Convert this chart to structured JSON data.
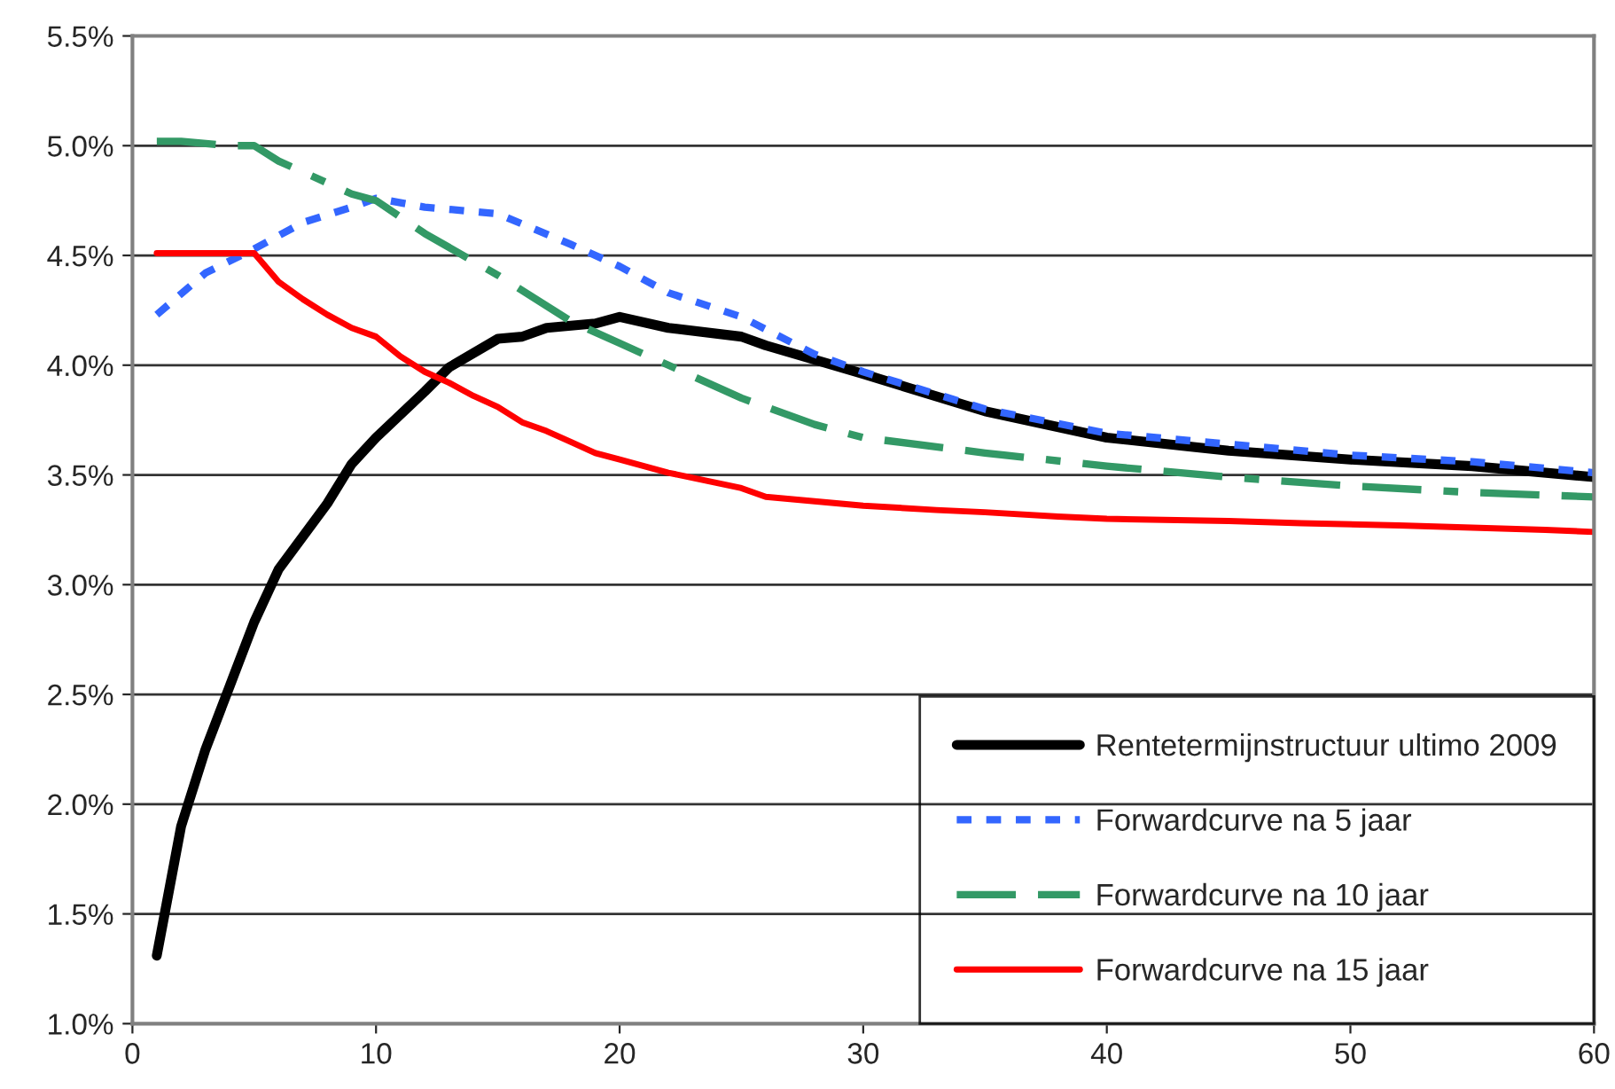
{
  "chart_data": {
    "type": "line",
    "xlim": [
      0,
      60
    ],
    "xticks": [
      0,
      10,
      20,
      30,
      40,
      50,
      60
    ],
    "ylim": [
      1.0,
      5.5
    ],
    "yticks": [
      {
        "value": 1.0,
        "label": "1.0%"
      },
      {
        "value": 1.5,
        "label": "1.5%"
      },
      {
        "value": 2.0,
        "label": "2.0%"
      },
      {
        "value": 2.5,
        "label": "2.5%"
      },
      {
        "value": 3.0,
        "label": "3.0%"
      },
      {
        "value": 3.5,
        "label": "3.5%"
      },
      {
        "value": 4.0,
        "label": "4.0%"
      },
      {
        "value": 4.5,
        "label": "4.5%"
      },
      {
        "value": 5.0,
        "label": "5.0%"
      },
      {
        "value": 5.5,
        "label": "5.5%"
      }
    ],
    "grid": "y",
    "legend": "bottom right",
    "marker": "none",
    "series": [
      {
        "name": "Rentetermijnstructuur ultimo 2009",
        "color": "#000000",
        "line_style": "solid",
        "x": [
          1,
          2,
          3,
          4,
          5,
          6,
          8,
          9,
          10,
          12,
          13,
          15,
          16,
          17,
          19,
          20,
          22,
          25,
          26,
          30,
          35,
          40,
          45,
          50,
          55,
          60
        ],
        "values": [
          1.31,
          1.9,
          2.25,
          2.54,
          2.83,
          3.07,
          3.37,
          3.55,
          3.67,
          3.88,
          3.99,
          4.12,
          4.13,
          4.17,
          4.19,
          4.22,
          4.17,
          4.13,
          4.09,
          3.96,
          3.79,
          3.67,
          3.61,
          3.57,
          3.54,
          3.49
        ]
      },
      {
        "name": "Forwardcurve na 5 jaar",
        "color": "#3366ff",
        "line_style": "dotted",
        "x": [
          1,
          3,
          5,
          7,
          9,
          10,
          12,
          15,
          18,
          20,
          22,
          25,
          28,
          30,
          35,
          40,
          45,
          50,
          55,
          60
        ],
        "values": [
          4.23,
          4.42,
          4.53,
          4.65,
          4.72,
          4.76,
          4.72,
          4.69,
          4.55,
          4.45,
          4.33,
          4.22,
          4.05,
          3.97,
          3.8,
          3.69,
          3.64,
          3.59,
          3.56,
          3.51
        ]
      },
      {
        "name": "Forwardcurve na 10 jaar",
        "color": "#339966",
        "line_style": "dashed",
        "x": [
          1,
          2,
          4,
          5,
          6,
          9,
          10,
          12,
          15,
          18,
          20,
          22,
          25,
          28,
          30,
          35,
          40,
          45,
          50,
          55,
          60
        ],
        "values": [
          5.02,
          5.02,
          5.0,
          5.0,
          4.93,
          4.78,
          4.75,
          4.6,
          4.41,
          4.2,
          4.1,
          4.0,
          3.85,
          3.73,
          3.67,
          3.6,
          3.54,
          3.49,
          3.45,
          3.42,
          3.4
        ]
      },
      {
        "name": "Forwardcurve na 15 jaar",
        "color": "#ff0000",
        "line_style": "solid",
        "x": [
          1,
          5,
          6,
          7,
          8,
          9,
          10,
          11,
          12,
          13,
          14,
          15,
          16,
          17,
          18,
          19,
          20,
          22,
          25,
          26,
          28,
          30,
          33,
          35,
          38,
          40,
          45,
          48,
          52,
          58,
          60
        ],
        "values": [
          4.51,
          4.51,
          4.38,
          4.3,
          4.23,
          4.17,
          4.13,
          4.04,
          3.97,
          3.92,
          3.86,
          3.81,
          3.74,
          3.7,
          3.65,
          3.6,
          3.57,
          3.51,
          3.44,
          3.4,
          3.38,
          3.36,
          3.34,
          3.33,
          3.31,
          3.3,
          3.29,
          3.28,
          3.27,
          3.25,
          3.24
        ]
      }
    ]
  }
}
